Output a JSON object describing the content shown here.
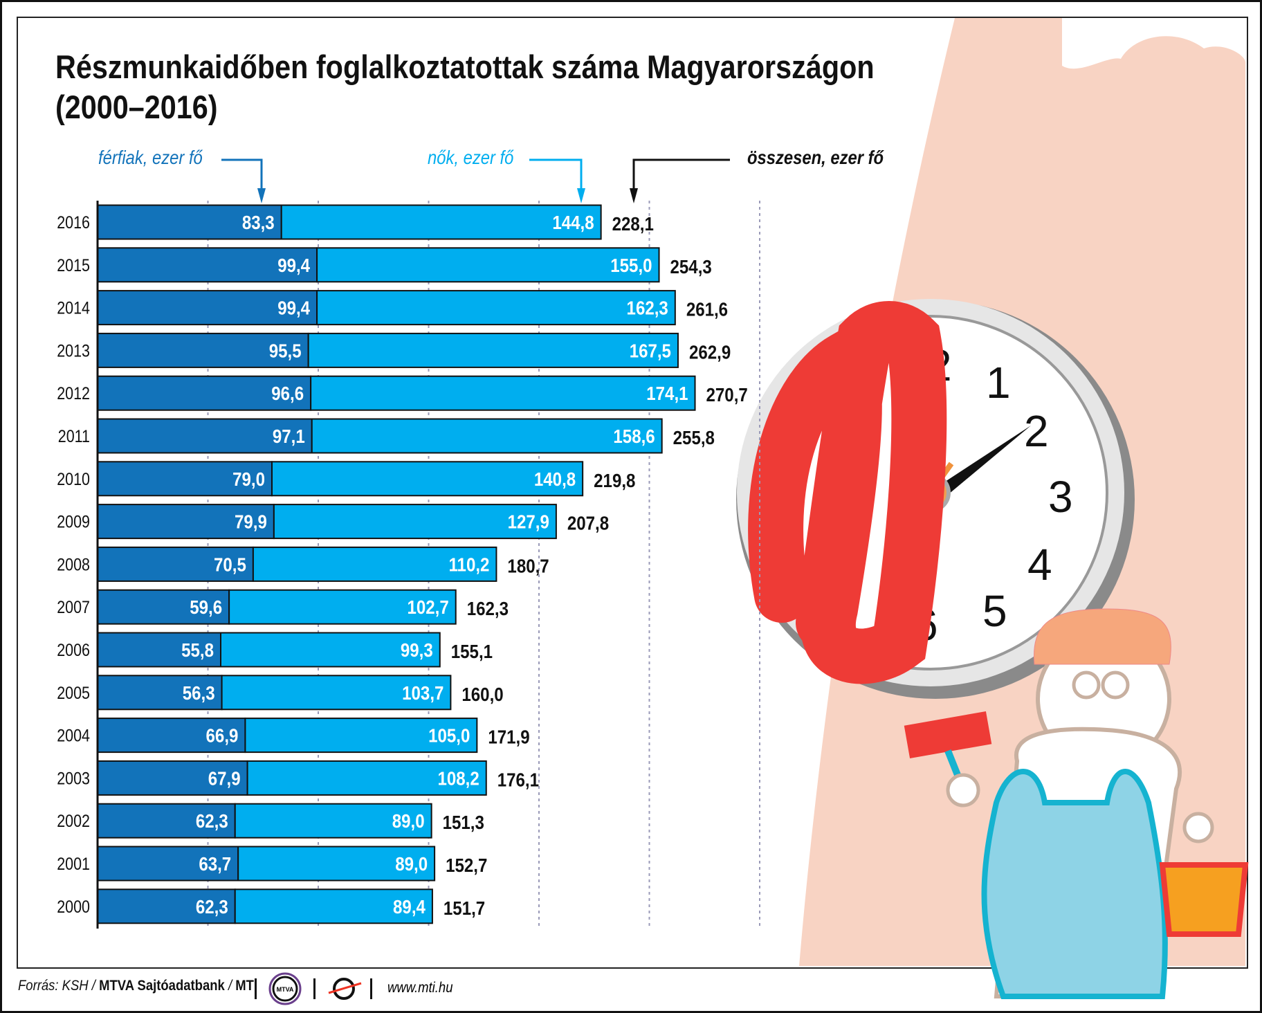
{
  "title_line1": "Részmunkaidőben foglalkoztatottak száma Magyarországon",
  "title_line2": "(2000–2016)",
  "annotations": {
    "men": "férfiak, ezer fő",
    "women": "nők, ezer fő",
    "total": "összesen, ezer fő"
  },
  "footer": {
    "source_prefix": "Forrás: KSH / ",
    "source_bold": "MTVA Sajtóadatbank",
    "source_sep": " / ",
    "source_mti": "MTI",
    "logo_mtva": "MTVA",
    "url": "www.mti.hu"
  },
  "colors": {
    "men": "#1273ba",
    "women": "#00aeef",
    "total": "#111111",
    "wall": "#f8d3c3",
    "scribble": "#ee3b36"
  },
  "chart_data": {
    "type": "bar",
    "stacked": true,
    "orientation": "horizontal",
    "title": "Részmunkaidőben foglalkoztatottak száma Magyarországon (2000–2016)",
    "categories": [
      "2016",
      "2015",
      "2014",
      "2013",
      "2012",
      "2011",
      "2010",
      "2009",
      "2008",
      "2007",
      "2006",
      "2005",
      "2004",
      "2003",
      "2002",
      "2001",
      "2000"
    ],
    "series": [
      {
        "name": "férfiak, ezer fő",
        "values": [
          "83,3",
          "99,4",
          "99,4",
          "95,5",
          "96,6",
          "97,1",
          "79,0",
          "79,9",
          "70,5",
          "59,6",
          "55,8",
          "56,3",
          "66,9",
          "67,9",
          "62,3",
          "63,7",
          "62,3"
        ]
      },
      {
        "name": "nők, ezer fő",
        "values": [
          "144,8",
          "155,0",
          "162,3",
          "167,5",
          "174,1",
          "158,6",
          "140,8",
          "127,9",
          "110,2",
          "102,7",
          "99,3",
          "103,7",
          "105,0",
          "108,2",
          "89,0",
          "89,0",
          "89,4"
        ]
      },
      {
        "name": "összesen, ezer fő",
        "values": [
          "228,1",
          "254,3",
          "261,6",
          "262,9",
          "270,7",
          "255,8",
          "219,8",
          "207,8",
          "180,7",
          "162,3",
          "155,1",
          "160,0",
          "171,9",
          "176,1",
          "151,3",
          "152,7",
          "151,7"
        ]
      }
    ],
    "xlim": [
      0,
      300
    ],
    "grid_step": 50,
    "grid": true
  }
}
